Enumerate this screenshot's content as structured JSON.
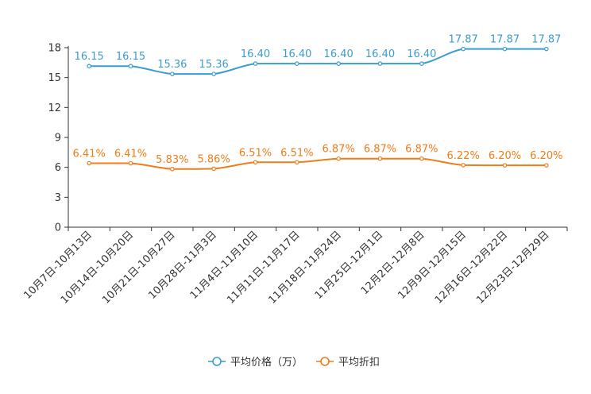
{
  "chart_data": {
    "type": "line",
    "title": "",
    "xlabel": "",
    "ylabel": "",
    "ylim": [
      0,
      18
    ],
    "yticks": [
      0,
      3,
      6,
      9,
      12,
      15,
      18
    ],
    "grid": false,
    "legend_position": "bottom-center",
    "categories": [
      "10月7日-10月13日",
      "10月14日-10月20日",
      "10月21日-10月27日",
      "10月28日-11月3日",
      "11月4日-11月10日",
      "11月11日-11月17日",
      "11月18日-11月24日",
      "11月25日-12月1日",
      "12月2日-12月8日",
      "12月9日-12月15日",
      "12月16日-12月22日",
      "12月23日-12月29日"
    ],
    "series": [
      {
        "name": "平均价格（万）",
        "color": "#3b9ccf",
        "values": [
          16.15,
          16.15,
          15.36,
          15.36,
          16.4,
          16.4,
          16.4,
          16.4,
          16.4,
          17.87,
          17.87,
          17.87
        ],
        "labels": [
          "16.15",
          "16.15",
          "15.36",
          "15.36",
          "16.40",
          "16.40",
          "16.40",
          "16.40",
          "16.40",
          "17.87",
          "17.87",
          "17.87"
        ]
      },
      {
        "name": "平均折扣",
        "color": "#f07c1a",
        "values": [
          6.41,
          6.41,
          5.83,
          5.86,
          6.51,
          6.51,
          6.87,
          6.87,
          6.87,
          6.22,
          6.2,
          6.2
        ],
        "labels": [
          "6.41%",
          "6.41%",
          "5.83%",
          "5.86%",
          "6.51%",
          "6.51%",
          "6.87%",
          "6.87%",
          "6.87%",
          "6.22%",
          "6.20%",
          "6.20%"
        ]
      }
    ]
  }
}
